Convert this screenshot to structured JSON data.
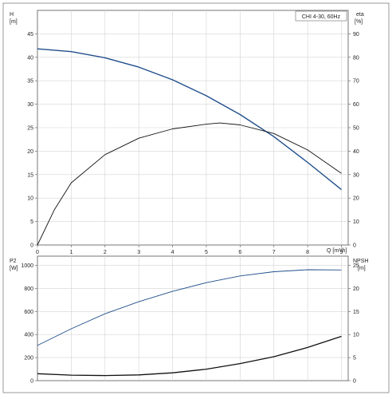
{
  "chart_data": [
    {
      "type": "line",
      "title": "CHI 4-30, 60Hz",
      "xlabel": "Q [m³/h]",
      "ylabel_left_name": "H",
      "ylabel_left_unit": "[m]",
      "ylabel_right_name": "eta",
      "ylabel_right_unit": "[%]",
      "xlim": [
        0,
        9.2
      ],
      "ylim_left": [
        0,
        50
      ],
      "ylim_right": [
        0,
        100
      ],
      "x_ticks": [
        "0",
        "1",
        "2",
        "3",
        "4",
        "5",
        "6",
        "7",
        "8",
        "9"
      ],
      "y_ticks_left": [
        "0",
        "5",
        "10",
        "15",
        "20",
        "25",
        "30",
        "35",
        "40",
        "45"
      ],
      "y_ticks_right": [
        "0",
        "10",
        "20",
        "30",
        "40",
        "50",
        "60",
        "70",
        "80",
        "90"
      ],
      "grid": true,
      "series": [
        {
          "axis": "left",
          "color": "#1f4e8c",
          "x": [
            0,
            1,
            2,
            3,
            4,
            5,
            6,
            7,
            8,
            9
          ],
          "values": [
            41.8,
            41.2,
            39.9,
            37.9,
            35.2,
            31.8,
            27.8,
            23.1,
            17.6,
            11.8
          ]
        },
        {
          "axis": "right",
          "color": "#111111",
          "x": [
            0,
            0.5,
            1,
            2,
            3,
            4,
            5,
            5.4,
            6,
            7,
            8,
            9
          ],
          "values": [
            0,
            15,
            26.5,
            38.5,
            45.5,
            49.5,
            51.5,
            52,
            51.2,
            47.5,
            40.5,
            30.5
          ]
        }
      ]
    },
    {
      "type": "line",
      "ylabel_left_name": "P2",
      "ylabel_left_unit": "[W]",
      "ylabel_right_name": "NPSH",
      "ylabel_right_unit": "[m]",
      "xlim": [
        0,
        9.2
      ],
      "ylim_left": [
        0,
        1080
      ],
      "ylim_right": [
        0,
        27
      ],
      "y_ticks_left": [
        "0",
        "200",
        "400",
        "600",
        "800",
        "1000"
      ],
      "y_ticks_right": [
        "0",
        "5",
        "10",
        "15",
        "20",
        "25"
      ],
      "grid": true,
      "series": [
        {
          "axis": "left",
          "color": "#1f4e8c",
          "x": [
            0,
            1,
            2,
            3,
            4,
            5,
            6,
            7,
            8,
            9
          ],
          "values": [
            305,
            450,
            580,
            685,
            775,
            850,
            908,
            945,
            962,
            960
          ]
        },
        {
          "axis": "right",
          "color": "#111111",
          "x": [
            0,
            1,
            2,
            3,
            4,
            5,
            6,
            7,
            8,
            9
          ],
          "values": [
            1.5,
            1.2,
            1.1,
            1.25,
            1.7,
            2.5,
            3.7,
            5.2,
            7.2,
            9.6
          ]
        }
      ]
    }
  ]
}
